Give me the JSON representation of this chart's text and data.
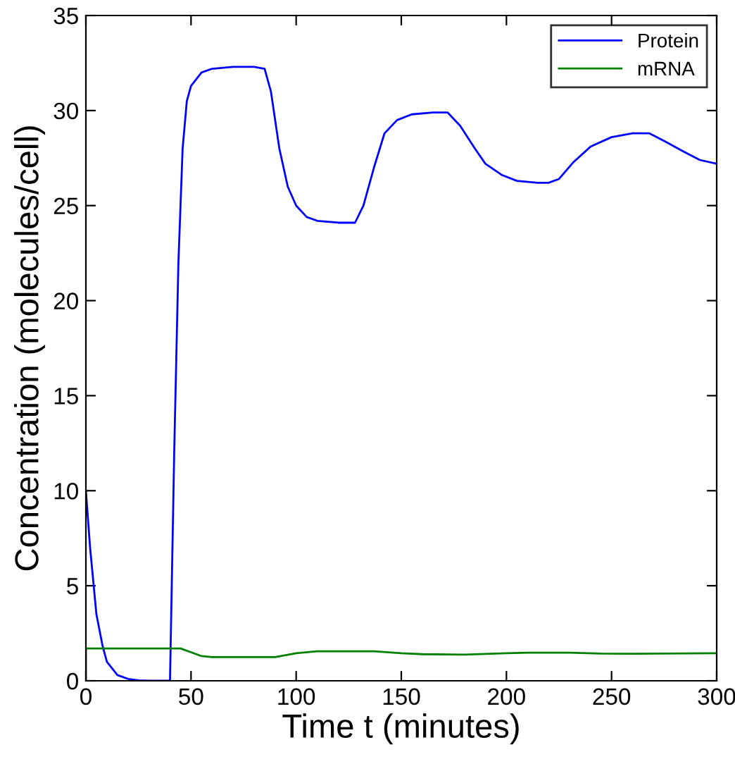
{
  "chart_data": {
    "type": "line",
    "xlabel": "Time t (minutes)",
    "ylabel": "Concentration (molecules/cell)",
    "xlim": [
      0,
      300
    ],
    "ylim": [
      0,
      35
    ],
    "xticks": [
      0,
      50,
      100,
      150,
      200,
      250,
      300
    ],
    "yticks": [
      0,
      5,
      10,
      15,
      20,
      25,
      30,
      35
    ],
    "grid": false,
    "legend": "top right",
    "line_style": "solid",
    "marker": "none",
    "series": [
      {
        "name": "Protein",
        "color": "#0000ff",
        "x": [
          0,
          2,
          5,
          8,
          10,
          15,
          20,
          25,
          30,
          40,
          42,
          44,
          46,
          48,
          50,
          55,
          60,
          70,
          80,
          85,
          88,
          92,
          96,
          100,
          105,
          110,
          120,
          128,
          132,
          137,
          142,
          148,
          155,
          165,
          172,
          178,
          185,
          190,
          198,
          205,
          215,
          220,
          225,
          232,
          240,
          250,
          260,
          268,
          275,
          285,
          292,
          300
        ],
        "values": [
          10,
          7,
          3.5,
          1.8,
          1.0,
          0.3,
          0.1,
          0.02,
          0,
          0,
          12,
          22,
          28,
          30.5,
          31.3,
          32.0,
          32.2,
          32.3,
          32.3,
          32.2,
          31,
          28,
          26,
          25,
          24.4,
          24.2,
          24.1,
          24.1,
          25,
          27,
          28.8,
          29.5,
          29.8,
          29.9,
          29.9,
          29.2,
          28,
          27.2,
          26.6,
          26.3,
          26.2,
          26.2,
          26.4,
          27.3,
          28.1,
          28.6,
          28.8,
          28.8,
          28.4,
          27.8,
          27.4,
          27.2
        ]
      },
      {
        "name": "mRNA",
        "color": "#008000",
        "x": [
          0,
          0,
          45,
          50,
          55,
          60,
          90,
          100,
          110,
          137,
          150,
          160,
          180,
          200,
          210,
          230,
          245,
          260,
          300
        ],
        "values": [
          0,
          1.7,
          1.7,
          1.5,
          1.3,
          1.25,
          1.25,
          1.45,
          1.55,
          1.55,
          1.45,
          1.4,
          1.38,
          1.45,
          1.48,
          1.48,
          1.43,
          1.42,
          1.45
        ]
      }
    ]
  }
}
